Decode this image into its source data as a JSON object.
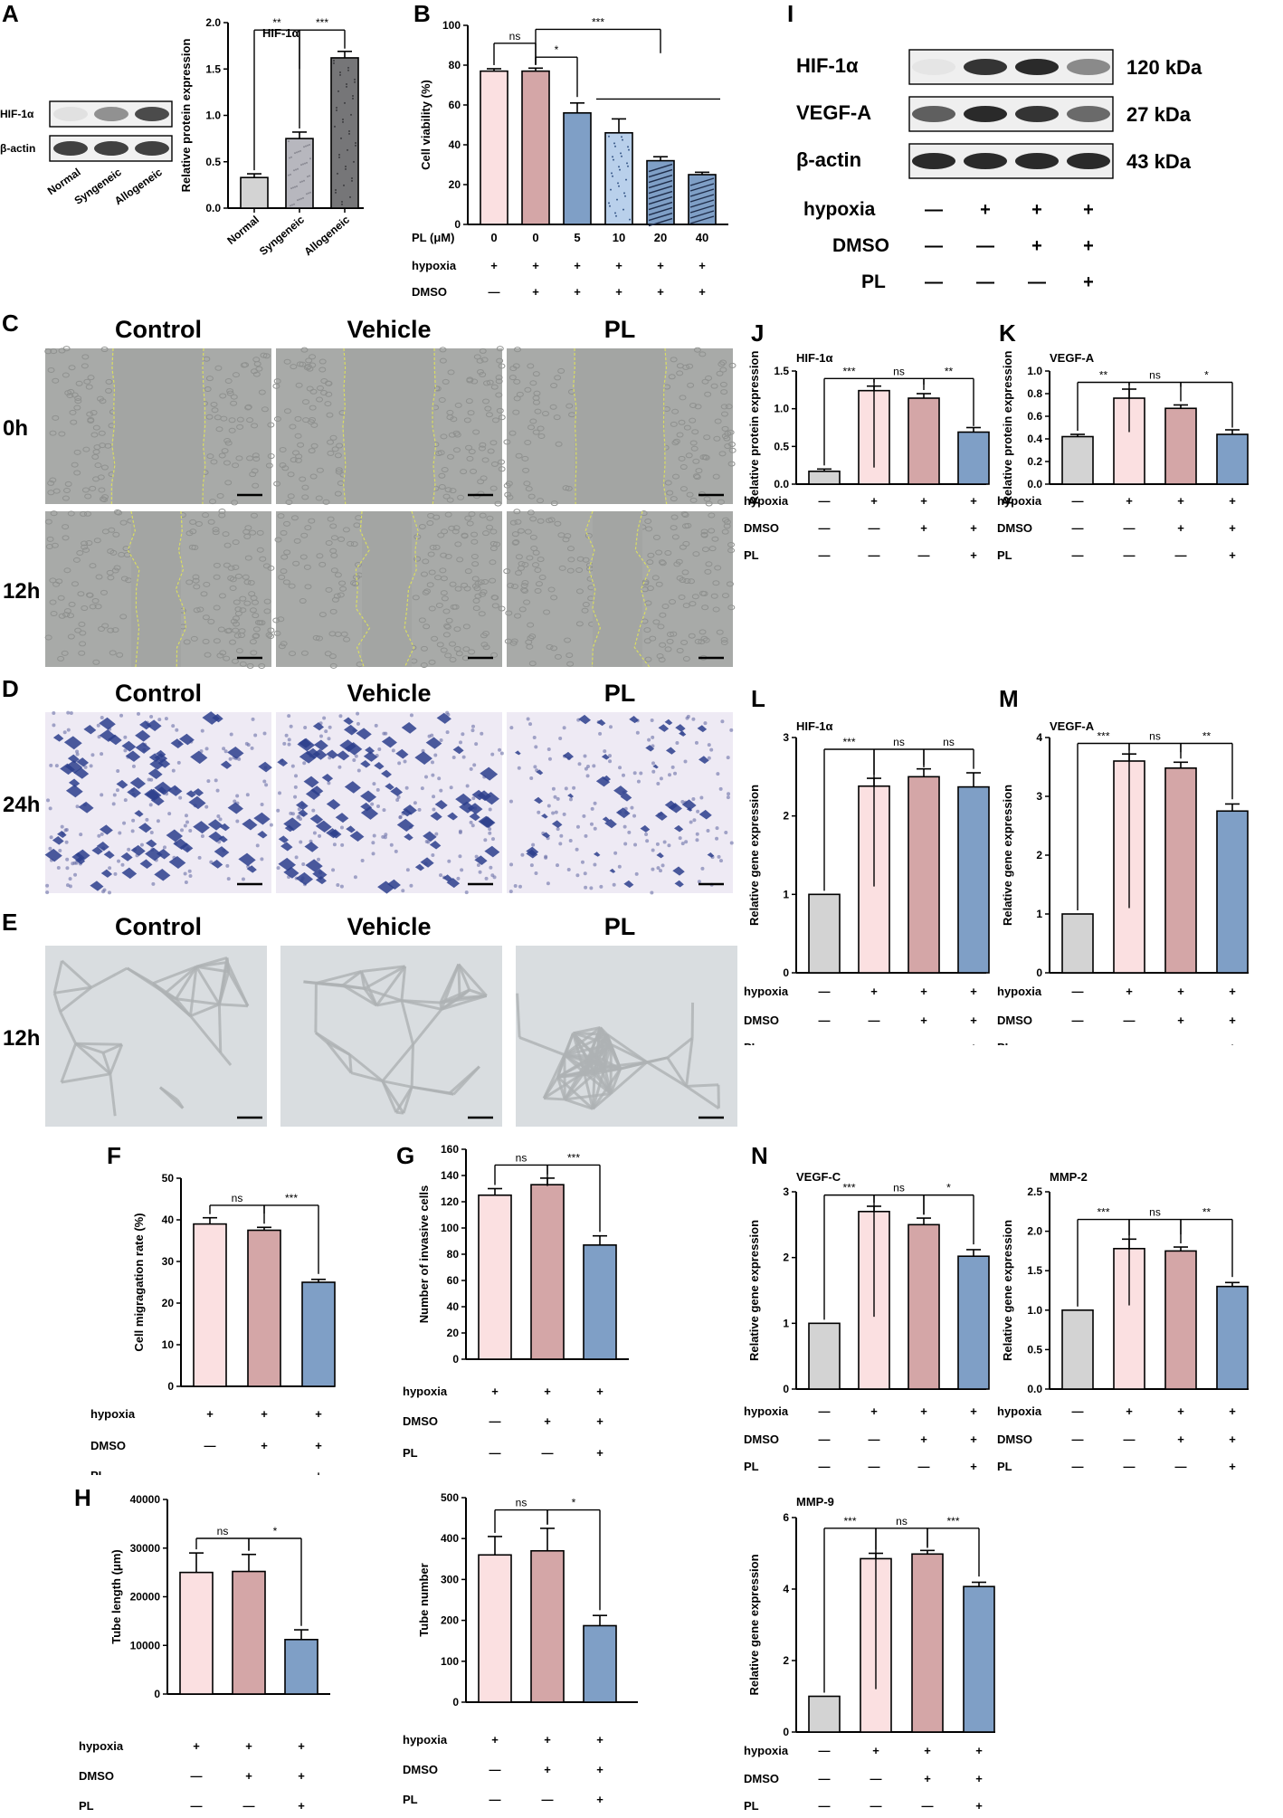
{
  "colors": {
    "normal": "#d3d3d3",
    "hyp": "#fbe0e1",
    "dmso": "#d4a6a7",
    "pl": "#7f9fc6",
    "plLight": "#b9d0eb",
    "syn": "#b7b7be",
    "allo": "#767678",
    "scratch": "#a8aaa8",
    "scratchCell": "#8f918f",
    "transwell": "#eeeaf4",
    "transCell": "#2c3e8c",
    "tube": "#d9dde0",
    "tubeLine": "#aeb2b4",
    "line": "#000000",
    "fillet": "#d9dd62"
  },
  "panel_labels": {
    "A": "A",
    "B": "B",
    "C": "C",
    "D": "D",
    "E": "E",
    "F": "F",
    "G": "G",
    "H": "H",
    "I": "I",
    "J": "J",
    "K": "K",
    "L": "L",
    "M": "M",
    "N": "N"
  },
  "wb_a": {
    "bands": [
      {
        "name": "HIF-1α",
        "intensity": [
          0.05,
          0.45,
          0.8
        ]
      },
      {
        "name": "β-actin",
        "intensity": [
          0.85,
          0.85,
          0.85
        ]
      }
    ],
    "lanes": [
      "Normal",
      "Syngeneic",
      "Allogeneic"
    ]
  },
  "wb_i": {
    "bands": [
      {
        "name": "HIF-1α",
        "kda": "120 kDa",
        "intensity": [
          0.03,
          0.85,
          0.9,
          0.45
        ]
      },
      {
        "name": "VEGF-A",
        "kda": "27 kDa",
        "intensity": [
          0.65,
          0.9,
          0.85,
          0.6
        ]
      },
      {
        "name": "β-actin",
        "kda": "43 kDa",
        "intensity": [
          0.9,
          0.9,
          0.9,
          0.9
        ]
      }
    ],
    "rows": [
      {
        "label": "hypoxia",
        "vals": [
          "—",
          "+",
          "+",
          "+"
        ]
      },
      {
        "label": "DMSO",
        "vals": [
          "—",
          "—",
          "+",
          "+"
        ]
      },
      {
        "label": "PL",
        "vals": [
          "—",
          "—",
          "—",
          "+"
        ]
      }
    ]
  },
  "micro": {
    "C": {
      "cols": [
        "Control",
        "Vehicle",
        "PL"
      ],
      "rows": [
        "0h",
        "12h"
      ]
    },
    "D": {
      "cols": [
        "Control",
        "Vehicle",
        "PL"
      ],
      "rows": [
        "24h"
      ]
    },
    "E": {
      "cols": [
        "Control",
        "Vehicle",
        "PL"
      ],
      "rows": [
        "12h"
      ]
    }
  },
  "chart_data": [
    {
      "id": "A",
      "type": "bar",
      "title": "HIF-1α",
      "ylabel": "Relative protein expression",
      "ylim": [
        0,
        2.0
      ],
      "ticks": [
        "0.0",
        "0.5",
        "1.0",
        "1.5",
        "2.0"
      ],
      "categories": [
        "Normal",
        "Syngeneic",
        "Allogeneic"
      ],
      "values": [
        0.33,
        0.75,
        1.62
      ],
      "errors": [
        0.04,
        0.07,
        0.07
      ],
      "colors": [
        "normal",
        "syn",
        "allo"
      ],
      "sig": [
        {
          "a": 0,
          "b": 1,
          "label": "**",
          "y": 1.92,
          "drop": 1.5
        },
        {
          "a": 1,
          "b": 2,
          "label": "***",
          "y": 1.92,
          "drop": 1.72
        }
      ]
    },
    {
      "id": "B",
      "type": "bar",
      "ylabel": "Cell viability (%)",
      "ylim": [
        0,
        100
      ],
      "ticks": [
        "0",
        "20",
        "40",
        "60",
        "80",
        "100"
      ],
      "values": [
        77,
        77,
        56,
        46,
        32,
        25
      ],
      "errors": [
        1.2,
        1.5,
        5,
        7,
        2,
        1.2
      ],
      "colors": [
        "hyp",
        "dmso",
        "pl",
        "plLight",
        "pl",
        "pl"
      ],
      "rows": [
        {
          "label": "PL (μM)",
          "vals": [
            "0",
            "0",
            "5",
            "10",
            "20",
            "40"
          ]
        },
        {
          "label": "hypoxia",
          "vals": [
            "+",
            "+",
            "+",
            "+",
            "+",
            "+"
          ]
        },
        {
          "label": "DMSO",
          "vals": [
            "—",
            "+",
            "+",
            "+",
            "+",
            "+"
          ]
        }
      ],
      "sig": [
        {
          "a": 0,
          "b": 1,
          "label": "ns",
          "y": 91,
          "drop": 80
        },
        {
          "a": 1,
          "b": 2,
          "label": "*",
          "y": 84,
          "drop": 64
        },
        {
          "a": 1,
          "b": 4,
          "label": "***",
          "y": 98,
          "drop": 86
        }
      ]
    },
    {
      "id": "F",
      "type": "bar",
      "ylabel": "Cell migragation rate (%)",
      "ylim": [
        0,
        50
      ],
      "ticks": [
        "0",
        "10",
        "20",
        "30",
        "40",
        "50"
      ],
      "values": [
        39,
        37.5,
        25
      ],
      "errors": [
        1.5,
        0.7,
        0.7
      ],
      "colors": [
        "hyp",
        "dmso",
        "pl"
      ],
      "rows": [
        {
          "label": "hypoxia",
          "vals": [
            "+",
            "+",
            "+"
          ]
        },
        {
          "label": "DMSO",
          "vals": [
            "—",
            "+",
            "+"
          ]
        },
        {
          "label": "PL",
          "vals": [
            "—",
            "—",
            "+"
          ]
        }
      ],
      "sig": [
        {
          "a": 0,
          "b": 1,
          "label": "ns",
          "y": 43.5,
          "drop": 41.5
        },
        {
          "a": 1,
          "b": 2,
          "label": "***",
          "y": 43.5,
          "drop": 27
        }
      ]
    },
    {
      "id": "G",
      "type": "bar",
      "ylabel": "Number of invasive cells",
      "ylim": [
        0,
        160
      ],
      "ticks": [
        "0",
        "20",
        "40",
        "60",
        "80",
        "100",
        "120",
        "140",
        "160"
      ],
      "values": [
        125,
        133,
        87
      ],
      "errors": [
        5,
        5,
        7
      ],
      "colors": [
        "hyp",
        "dmso",
        "pl"
      ],
      "rows": [
        {
          "label": "hypoxia",
          "vals": [
            "+",
            "+",
            "+"
          ]
        },
        {
          "label": "DMSO",
          "vals": [
            "—",
            "+",
            "+"
          ]
        },
        {
          "label": "PL",
          "vals": [
            "—",
            "—",
            "+"
          ]
        }
      ],
      "sig": [
        {
          "a": 0,
          "b": 1,
          "label": "ns",
          "y": 148,
          "drop": 132
        },
        {
          "a": 1,
          "b": 2,
          "label": "***",
          "y": 148,
          "drop": 97
        }
      ]
    },
    {
      "id": "H1",
      "type": "bar",
      "ylabel": "Tube length (μm)",
      "ylim": [
        0,
        40000
      ],
      "ticks": [
        "0",
        "10000",
        "20000",
        "30000",
        "40000"
      ],
      "values": [
        25000,
        25200,
        11200
      ],
      "errors": [
        4000,
        3500,
        2000
      ],
      "colors": [
        "hyp",
        "dmso",
        "pl"
      ],
      "rows": [
        {
          "label": "hypoxia",
          "vals": [
            "+",
            "+",
            "+"
          ]
        },
        {
          "label": "DMSO",
          "vals": [
            "—",
            "+",
            "+"
          ]
        },
        {
          "label": "PL",
          "vals": [
            "—",
            "—",
            "+"
          ]
        }
      ],
      "sig": [
        {
          "a": 0,
          "b": 1,
          "label": "ns",
          "y": 32000,
          "drop": 29500
        },
        {
          "a": 1,
          "b": 2,
          "label": "*",
          "y": 32000,
          "drop": 14000
        }
      ]
    },
    {
      "id": "H2",
      "type": "bar",
      "ylabel": "Tube number",
      "ylim": [
        0,
        500
      ],
      "ticks": [
        "0",
        "100",
        "200",
        "300",
        "400",
        "500"
      ],
      "values": [
        360,
        370,
        187
      ],
      "errors": [
        45,
        55,
        25
      ],
      "colors": [
        "hyp",
        "dmso",
        "pl"
      ],
      "rows": [
        {
          "label": "hypoxia",
          "vals": [
            "+",
            "+",
            "+"
          ]
        },
        {
          "label": "DMSO",
          "vals": [
            "—",
            "+",
            "+"
          ]
        },
        {
          "label": "PL",
          "vals": [
            "—",
            "—",
            "+"
          ]
        }
      ],
      "sig": [
        {
          "a": 0,
          "b": 1,
          "label": "ns",
          "y": 470,
          "drop": 435
        },
        {
          "a": 1,
          "b": 2,
          "label": "*",
          "y": 470,
          "drop": 225
        }
      ]
    },
    {
      "id": "J",
      "type": "bar",
      "title": "HIF-1α",
      "ylabel": "Relative protein expression",
      "ylim": [
        0,
        1.5
      ],
      "ticks": [
        "0.0",
        "0.5",
        "1.0",
        "1.5"
      ],
      "values": [
        0.17,
        1.24,
        1.14,
        0.69
      ],
      "errors": [
        0.03,
        0.06,
        0.06,
        0.06
      ],
      "colors": [
        "normal",
        "hyp",
        "dmso",
        "pl"
      ],
      "rows": [
        {
          "label": "hypoxia",
          "vals": [
            "—",
            "+",
            "+",
            "+"
          ]
        },
        {
          "label": "DMSO",
          "vals": [
            "—",
            "—",
            "+",
            "+"
          ]
        },
        {
          "label": "PL",
          "vals": [
            "—",
            "—",
            "—",
            "+"
          ]
        }
      ],
      "sig": [
        {
          "a": 0,
          "b": 1,
          "label": "***",
          "y": 1.4,
          "drop": 0.22
        },
        {
          "a": 1,
          "b": 2,
          "label": "ns",
          "y": 1.4,
          "drop": 1.32
        },
        {
          "a": 2,
          "b": 3,
          "label": "**",
          "y": 1.4,
          "drop": 0.77
        }
      ]
    },
    {
      "id": "K",
      "type": "bar",
      "title": "VEGF-A",
      "ylabel": "Relative protein expression",
      "ylim": [
        0,
        1.0
      ],
      "ticks": [
        "0.0",
        "0.2",
        "0.4",
        "0.6",
        "0.8",
        "1.0"
      ],
      "values": [
        0.42,
        0.76,
        0.67,
        0.44
      ],
      "errors": [
        0.02,
        0.08,
        0.03,
        0.04
      ],
      "colors": [
        "normal",
        "hyp",
        "dmso",
        "pl"
      ],
      "rows": [
        {
          "label": "hypoxia",
          "vals": [
            "—",
            "+",
            "+",
            "+"
          ]
        },
        {
          "label": "DMSO",
          "vals": [
            "—",
            "—",
            "+",
            "+"
          ]
        },
        {
          "label": "PL",
          "vals": [
            "—",
            "—",
            "—",
            "+"
          ]
        }
      ],
      "sig": [
        {
          "a": 0,
          "b": 1,
          "label": "**",
          "y": 0.9,
          "drop": 0.46
        },
        {
          "a": 1,
          "b": 2,
          "label": "ns",
          "y": 0.9,
          "drop": 0.86
        },
        {
          "a": 2,
          "b": 3,
          "label": "*",
          "y": 0.9,
          "drop": 0.5
        }
      ]
    },
    {
      "id": "L",
      "type": "bar",
      "title": "HIF-1α",
      "ylabel": "Relative gene expression",
      "ylim": [
        0,
        3
      ],
      "ticks": [
        "0",
        "1",
        "2",
        "3"
      ],
      "values": [
        1.0,
        2.38,
        2.5,
        2.37
      ],
      "errors": [
        0.0,
        0.1,
        0.1,
        0.18
      ],
      "colors": [
        "normal",
        "hyp",
        "dmso",
        "pl"
      ],
      "rows": [
        {
          "label": "hypoxia",
          "vals": [
            "—",
            "+",
            "+",
            "+"
          ]
        },
        {
          "label": "DMSO",
          "vals": [
            "—",
            "—",
            "+",
            "+"
          ]
        },
        {
          "label": "PL",
          "vals": [
            "—",
            "—",
            "—",
            "+"
          ]
        }
      ],
      "sig": [
        {
          "a": 0,
          "b": 1,
          "label": "***",
          "y": 2.85,
          "drop": 1.1
        },
        {
          "a": 1,
          "b": 2,
          "label": "ns",
          "y": 2.85,
          "drop": 2.62
        },
        {
          "a": 2,
          "b": 3,
          "label": "ns",
          "y": 2.85,
          "drop": 2.6
        }
      ]
    },
    {
      "id": "M",
      "type": "bar",
      "title": "VEGF-A",
      "ylabel": "Relative gene expression",
      "ylim": [
        0,
        4
      ],
      "ticks": [
        "0",
        "1",
        "2",
        "3",
        "4"
      ],
      "values": [
        1.0,
        3.6,
        3.48,
        2.75
      ],
      "errors": [
        0.0,
        0.12,
        0.1,
        0.12
      ],
      "colors": [
        "normal",
        "hyp",
        "dmso",
        "pl"
      ],
      "rows": [
        {
          "label": "hypoxia",
          "vals": [
            "—",
            "+",
            "+",
            "+"
          ]
        },
        {
          "label": "DMSO",
          "vals": [
            "—",
            "—",
            "+",
            "+"
          ]
        },
        {
          "label": "PL",
          "vals": [
            "—",
            "—",
            "—",
            "+"
          ]
        }
      ],
      "sig": [
        {
          "a": 0,
          "b": 1,
          "label": "***",
          "y": 3.9,
          "drop": 1.1
        },
        {
          "a": 1,
          "b": 2,
          "label": "ns",
          "y": 3.9,
          "drop": 3.75
        },
        {
          "a": 2,
          "b": 3,
          "label": "**",
          "y": 3.9,
          "drop": 2.95
        }
      ]
    },
    {
      "id": "N1",
      "type": "bar",
      "title": "VEGF-C",
      "ylabel": "Relative gene expression",
      "ylim": [
        0,
        3
      ],
      "ticks": [
        "0",
        "1",
        "2",
        "3"
      ],
      "values": [
        1.0,
        2.7,
        2.5,
        2.02
      ],
      "errors": [
        0.0,
        0.08,
        0.1,
        0.1
      ],
      "colors": [
        "normal",
        "hyp",
        "dmso",
        "pl"
      ],
      "rows": [
        {
          "label": "hypoxia",
          "vals": [
            "—",
            "+",
            "+",
            "+"
          ]
        },
        {
          "label": "DMSO",
          "vals": [
            "—",
            "—",
            "+",
            "+"
          ]
        },
        {
          "label": "PL",
          "vals": [
            "—",
            "—",
            "—",
            "+"
          ]
        }
      ],
      "sig": [
        {
          "a": 0,
          "b": 1,
          "label": "***",
          "y": 2.95,
          "drop": 1.1
        },
        {
          "a": 1,
          "b": 2,
          "label": "ns",
          "y": 2.95,
          "drop": 2.65
        },
        {
          "a": 2,
          "b": 3,
          "label": "*",
          "y": 2.95,
          "drop": 2.2
        }
      ]
    },
    {
      "id": "N2",
      "type": "bar",
      "title": "MMP-2",
      "ylabel": "Relative gene expression",
      "ylim": [
        0,
        2.5
      ],
      "ticks": [
        "0.0",
        "0.5",
        "1.0",
        "1.5",
        "2.0",
        "2.5"
      ],
      "values": [
        1.0,
        1.78,
        1.75,
        1.3
      ],
      "errors": [
        0.0,
        0.12,
        0.05,
        0.05
      ],
      "colors": [
        "normal",
        "hyp",
        "dmso",
        "pl"
      ],
      "rows": [
        {
          "label": "hypoxia",
          "vals": [
            "—",
            "+",
            "+",
            "+"
          ]
        },
        {
          "label": "DMSO",
          "vals": [
            "—",
            "—",
            "+",
            "+"
          ]
        },
        {
          "label": "PL",
          "vals": [
            "—",
            "—",
            "—",
            "+"
          ]
        }
      ],
      "sig": [
        {
          "a": 0,
          "b": 1,
          "label": "***",
          "y": 2.15,
          "drop": 1.06
        },
        {
          "a": 1,
          "b": 2,
          "label": "ns",
          "y": 2.15,
          "drop": 1.96
        },
        {
          "a": 2,
          "b": 3,
          "label": "**",
          "y": 2.15,
          "drop": 1.42
        }
      ]
    },
    {
      "id": "N3",
      "type": "bar",
      "title": "MMP-9",
      "ylabel": "Relative gene expression",
      "ylim": [
        0,
        6
      ],
      "ticks": [
        "0",
        "2",
        "4",
        "6"
      ],
      "values": [
        1.0,
        4.85,
        4.98,
        4.07
      ],
      "errors": [
        0.0,
        0.15,
        0.1,
        0.12
      ],
      "colors": [
        "normal",
        "hyp",
        "dmso",
        "pl"
      ],
      "rows": [
        {
          "label": "hypoxia",
          "vals": [
            "—",
            "+",
            "+",
            "+"
          ]
        },
        {
          "label": "DMSO",
          "vals": [
            "—",
            "—",
            "+",
            "+"
          ]
        },
        {
          "label": "PL",
          "vals": [
            "—",
            "—",
            "—",
            "+"
          ]
        }
      ],
      "sig": [
        {
          "a": 0,
          "b": 1,
          "label": "***",
          "y": 5.7,
          "drop": 1.2
        },
        {
          "a": 1,
          "b": 2,
          "label": "ns",
          "y": 5.7,
          "drop": 5.15
        },
        {
          "a": 2,
          "b": 3,
          "label": "***",
          "y": 5.7,
          "drop": 4.35
        }
      ]
    }
  ]
}
